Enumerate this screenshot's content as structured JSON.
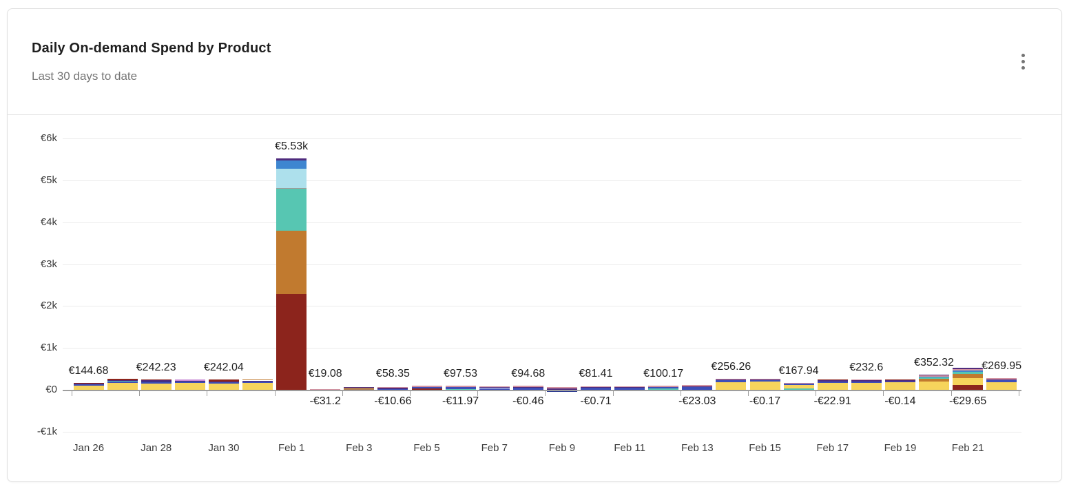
{
  "card": {
    "title": "Daily On-demand Spend by Product",
    "subtitle": "Last 30 days to date",
    "menu_icon": "kebab-vertical-icon"
  },
  "colors": {
    "yellow": "#F6D45C",
    "indigo": "#3D4EB8",
    "blue": "#3E86D0",
    "lightblue": "#ADE0EC",
    "teal": "#57C6B2",
    "orange": "#C17A2F",
    "darkred": "#8C241C",
    "purple": "#4F2B7D",
    "navy": "#2A3990",
    "pink": "#D393A2",
    "brown": "#AF7B52",
    "orchid": "#C98BD6",
    "gray": "#A39A96"
  },
  "chart_data": {
    "type": "bar",
    "stacked": true,
    "currency": "EUR",
    "title": "Daily On-demand Spend by Product",
    "grid": true,
    "ylim": [
      -1000,
      6000
    ],
    "y_tick_labels": [
      "-€1k",
      "€0",
      "€1k",
      "€2k",
      "€3k",
      "€4k",
      "€5k",
      "€6k"
    ],
    "x_tick_labels": [
      "Jan 26",
      "Jan 28",
      "Jan 30",
      "Feb 1",
      "Feb 3",
      "Feb 5",
      "Feb 7",
      "Feb 9",
      "Feb 11",
      "Feb 13",
      "Feb 15",
      "Feb 17",
      "Feb 19",
      "Feb 21"
    ],
    "categories": [
      "Jan 26",
      "Jan 27",
      "Jan 28",
      "Jan 29",
      "Jan 30",
      "Jan 31",
      "Feb 1",
      "Feb 2",
      "Feb 3",
      "Feb 4",
      "Feb 5",
      "Feb 6",
      "Feb 7",
      "Feb 8",
      "Feb 9",
      "Feb 10",
      "Feb 11",
      "Feb 12",
      "Feb 13",
      "Feb 14",
      "Feb 15",
      "Feb 16",
      "Feb 17",
      "Feb 18",
      "Feb 19",
      "Feb 20",
      "Feb 21",
      "Feb 22"
    ],
    "bars": [
      {
        "date": "Jan 26",
        "total": 144.68,
        "label": "€144.68",
        "segments": [
          [
            "yellow",
            100
          ],
          [
            "indigo",
            25
          ],
          [
            "purple",
            12
          ],
          [
            "darkred",
            7.68
          ]
        ]
      },
      {
        "date": "Jan 27",
        "total": 248,
        "segments": [
          [
            "yellow",
            165
          ],
          [
            "indigo",
            33
          ],
          [
            "teal",
            12
          ],
          [
            "purple",
            22
          ],
          [
            "darkred",
            16
          ]
        ]
      },
      {
        "date": "Jan 28",
        "total": 242.23,
        "label": "€242.23",
        "segments": [
          [
            "yellow",
            150
          ],
          [
            "indigo",
            33
          ],
          [
            "navy",
            18
          ],
          [
            "purple",
            25
          ],
          [
            "darkred",
            16.23
          ]
        ]
      },
      {
        "date": "Jan 29",
        "total": 238,
        "segments": [
          [
            "yellow",
            158
          ],
          [
            "indigo",
            33
          ],
          [
            "purple",
            17
          ],
          [
            "orchid",
            30
          ]
        ]
      },
      {
        "date": "Jan 30",
        "total": 242.04,
        "label": "€242.04",
        "segments": [
          [
            "yellow",
            148
          ],
          [
            "indigo",
            30
          ],
          [
            "purple",
            27
          ],
          [
            "darkred",
            37.04
          ]
        ]
      },
      {
        "date": "Jan 31",
        "total": 252,
        "segments": [
          [
            "yellow",
            160
          ],
          [
            "indigo",
            35
          ],
          [
            "purple",
            27
          ],
          [
            "orange",
            30
          ]
        ]
      },
      {
        "date": "Feb 1",
        "total": 5530,
        "label": "€5.53k",
        "segments": [
          [
            "darkred",
            2280
          ],
          [
            "orange",
            1520
          ],
          [
            "teal",
            1000
          ],
          [
            "gray",
            25
          ],
          [
            "lightblue",
            455
          ],
          [
            "blue",
            200
          ],
          [
            "purple",
            50
          ]
        ]
      },
      {
        "date": "Feb 2",
        "total": 19.08,
        "label": "€19.08",
        "neg_total": -31.2,
        "neg_label": "-€31.2",
        "segments": [
          [
            "pink",
            19.08
          ]
        ],
        "neg_segments": [
          [
            "purple",
            31.2
          ]
        ]
      },
      {
        "date": "Feb 3",
        "total": 66,
        "neg_total": -4,
        "segments": [
          [
            "brown",
            46
          ],
          [
            "purple",
            20
          ]
        ],
        "neg_segments": [
          [
            "purple",
            4
          ]
        ]
      },
      {
        "date": "Feb 4",
        "total": 58.35,
        "label": "€58.35",
        "neg_total": -10.66,
        "neg_label": "-€10.66",
        "segments": [
          [
            "indigo",
            24
          ],
          [
            "purple",
            14
          ],
          [
            "pink",
            20.35
          ]
        ],
        "neg_segments": [
          [
            "purple",
            10.66
          ]
        ]
      },
      {
        "date": "Feb 5",
        "total": 96,
        "neg_total": -5,
        "segments": [
          [
            "darkred",
            32
          ],
          [
            "indigo",
            34
          ],
          [
            "pink",
            30
          ]
        ],
        "neg_segments": [
          [
            "purple",
            5
          ]
        ]
      },
      {
        "date": "Feb 6",
        "total": 97.53,
        "label": "€97.53",
        "neg_total": -11.97,
        "neg_label": "-€11.97",
        "segments": [
          [
            "teal",
            22
          ],
          [
            "indigo",
            43
          ],
          [
            "pink",
            32.53
          ]
        ],
        "neg_segments": [
          [
            "purple",
            11.97
          ]
        ]
      },
      {
        "date": "Feb 7",
        "total": 86,
        "neg_total": -3,
        "segments": [
          [
            "indigo",
            41
          ],
          [
            "purple",
            20
          ],
          [
            "pink",
            25
          ]
        ],
        "neg_segments": [
          [
            "purple",
            3
          ]
        ]
      },
      {
        "date": "Feb 8",
        "total": 94.68,
        "label": "€94.68",
        "neg_total": -0.46,
        "neg_label": "-€0.46",
        "segments": [
          [
            "indigo",
            55
          ],
          [
            "purple",
            12
          ],
          [
            "pink",
            27.68
          ]
        ],
        "neg_segments": [
          [
            "purple",
            0.46
          ]
        ]
      },
      {
        "date": "Feb 9",
        "total": 62,
        "neg_total": -47,
        "segments": [
          [
            "purple",
            35
          ],
          [
            "pink",
            27
          ]
        ],
        "neg_segments": [
          [
            "teal",
            25
          ],
          [
            "navy",
            22
          ]
        ]
      },
      {
        "date": "Feb 10",
        "total": 81.41,
        "label": "€81.41",
        "neg_total": -0.71,
        "neg_label": "-€0.71",
        "segments": [
          [
            "indigo",
            45
          ],
          [
            "purple",
            12
          ],
          [
            "pink",
            24.41
          ]
        ],
        "neg_segments": [
          [
            "purple",
            0.71
          ]
        ]
      },
      {
        "date": "Feb 11",
        "total": 82,
        "neg_total": -2,
        "segments": [
          [
            "indigo",
            42
          ],
          [
            "purple",
            15
          ],
          [
            "pink",
            25
          ]
        ],
        "neg_segments": [
          [
            "purple",
            2
          ]
        ]
      },
      {
        "date": "Feb 12",
        "total": 100.17,
        "label": "€100.17",
        "neg_total": -1,
        "segments": [
          [
            "teal",
            25
          ],
          [
            "indigo",
            45
          ],
          [
            "pink",
            30.17
          ]
        ],
        "neg_segments": [
          [
            "purple",
            1
          ]
        ]
      },
      {
        "date": "Feb 13",
        "total": 116,
        "neg_total": -23.03,
        "neg_label": "-€23.03",
        "segments": [
          [
            "indigo",
            62
          ],
          [
            "purple",
            24
          ],
          [
            "pink",
            30
          ]
        ],
        "neg_segments": [
          [
            "purple",
            23.03
          ]
        ]
      },
      {
        "date": "Feb 14",
        "total": 256.26,
        "label": "€256.26",
        "neg_total": -1,
        "segments": [
          [
            "yellow",
            185
          ],
          [
            "indigo",
            40
          ],
          [
            "purple",
            11
          ],
          [
            "pink",
            20.26
          ]
        ],
        "neg_segments": [
          [
            "purple",
            1
          ]
        ]
      },
      {
        "date": "Feb 15",
        "total": 258,
        "neg_total": -0.17,
        "neg_label": "-€0.17",
        "segments": [
          [
            "yellow",
            192
          ],
          [
            "indigo",
            36
          ],
          [
            "purple",
            10
          ],
          [
            "pink",
            20
          ]
        ],
        "neg_segments": [
          [
            "purple",
            0.17
          ]
        ]
      },
      {
        "date": "Feb 16",
        "total": 167.94,
        "label": "€167.94",
        "neg_total": -1,
        "segments": [
          [
            "teal",
            26
          ],
          [
            "yellow",
            94
          ],
          [
            "indigo",
            28
          ],
          [
            "pink",
            19.94
          ]
        ],
        "neg_segments": [
          [
            "purple",
            1
          ]
        ]
      },
      {
        "date": "Feb 17",
        "total": 242,
        "neg_total": -22.91,
        "neg_label": "-€22.91",
        "segments": [
          [
            "yellow",
            170
          ],
          [
            "indigo",
            31
          ],
          [
            "purple",
            26
          ],
          [
            "darkred",
            15
          ]
        ],
        "neg_segments": [
          [
            "purple",
            22.91
          ]
        ]
      },
      {
        "date": "Feb 18",
        "total": 232.6,
        "label": "€232.6",
        "neg_total": -1,
        "segments": [
          [
            "yellow",
            168
          ],
          [
            "indigo",
            36
          ],
          [
            "purple",
            8
          ],
          [
            "pink",
            20.6
          ]
        ],
        "neg_segments": [
          [
            "purple",
            1
          ]
        ]
      },
      {
        "date": "Feb 19",
        "total": 232,
        "neg_total": -0.14,
        "neg_label": "-€0.14",
        "segments": [
          [
            "yellow",
            175
          ],
          [
            "indigo",
            30
          ],
          [
            "purple",
            17
          ],
          [
            "darkred",
            10
          ]
        ],
        "neg_segments": [
          [
            "purple",
            0.14
          ]
        ]
      },
      {
        "date": "Feb 20",
        "total": 352.32,
        "label": "€352.32",
        "neg_total": -8,
        "segments": [
          [
            "yellow",
            190
          ],
          [
            "orange",
            70
          ],
          [
            "teal",
            30
          ],
          [
            "blue",
            30
          ],
          [
            "pink",
            22
          ],
          [
            "purple",
            10.32
          ]
        ],
        "neg_segments": [
          [
            "purple",
            8
          ]
        ]
      },
      {
        "date": "Feb 21",
        "total": 525,
        "neg_total": -29.65,
        "neg_label": "-€29.65",
        "segments": [
          [
            "darkred",
            115
          ],
          [
            "yellow",
            170
          ],
          [
            "orange",
            95
          ],
          [
            "teal",
            50
          ],
          [
            "blue",
            30
          ],
          [
            "pink",
            40
          ],
          [
            "purple",
            25
          ]
        ],
        "neg_segments": [
          [
            "darkred",
            15
          ],
          [
            "purple",
            14.65
          ]
        ]
      },
      {
        "date": "Feb 22",
        "total": 269.95,
        "label": "€269.95",
        "segments": [
          [
            "yellow",
            185
          ],
          [
            "indigo",
            45
          ],
          [
            "purple",
            12
          ],
          [
            "pink",
            27.95
          ]
        ]
      }
    ]
  }
}
